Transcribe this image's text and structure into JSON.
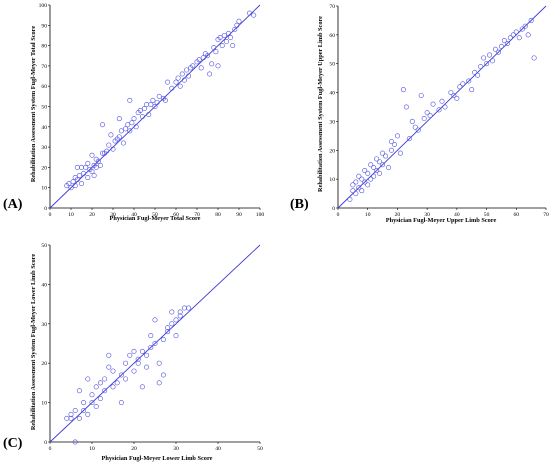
{
  "panel_labels": [
    "(A)",
    "(B)",
    "(C)"
  ],
  "colors": {
    "marker": "#5050e0",
    "fit_line": "#3a3ad8",
    "axis": "#000000"
  },
  "chart_data": [
    {
      "type": "scatter",
      "panel": "(A)",
      "xlabel": "Physician Fugl-Meyer Total Score",
      "ylabel": "Rehabilitation Assessment System Fugl-Meyer Total Score",
      "xlim": [
        0,
        100
      ],
      "ylim": [
        0,
        100
      ],
      "xticks": [
        0,
        10,
        20,
        30,
        40,
        50,
        60,
        70,
        80,
        90,
        100
      ],
      "yticks": [
        0,
        10,
        20,
        30,
        40,
        50,
        60,
        70,
        80,
        90,
        100
      ],
      "fit_line": {
        "x": [
          0,
          100
        ],
        "y": [
          0,
          100
        ]
      },
      "points": [
        [
          8,
          11
        ],
        [
          9,
          12
        ],
        [
          10,
          10
        ],
        [
          11,
          13
        ],
        [
          12,
          11
        ],
        [
          12,
          15
        ],
        [
          13,
          14
        ],
        [
          13,
          20
        ],
        [
          14,
          16
        ],
        [
          15,
          12
        ],
        [
          15,
          20
        ],
        [
          16,
          17
        ],
        [
          17,
          20
        ],
        [
          18,
          15
        ],
        [
          18,
          22
        ],
        [
          19,
          19
        ],
        [
          20,
          18
        ],
        [
          20,
          26
        ],
        [
          21,
          21
        ],
        [
          21,
          16
        ],
        [
          22,
          20
        ],
        [
          22,
          24
        ],
        [
          23,
          23
        ],
        [
          24,
          21
        ],
        [
          25,
          27
        ],
        [
          25,
          41
        ],
        [
          26,
          27
        ],
        [
          27,
          28
        ],
        [
          28,
          31
        ],
        [
          29,
          36
        ],
        [
          30,
          29
        ],
        [
          31,
          33
        ],
        [
          32,
          34
        ],
        [
          33,
          35
        ],
        [
          33,
          44
        ],
        [
          34,
          38
        ],
        [
          35,
          32
        ],
        [
          36,
          39
        ],
        [
          37,
          41
        ],
        [
          38,
          38
        ],
        [
          38,
          53
        ],
        [
          39,
          42
        ],
        [
          40,
          44
        ],
        [
          41,
          40
        ],
        [
          42,
          47
        ],
        [
          43,
          48
        ],
        [
          44,
          45
        ],
        [
          45,
          49
        ],
        [
          46,
          51
        ],
        [
          47,
          46
        ],
        [
          48,
          51
        ],
        [
          49,
          53
        ],
        [
          50,
          50
        ],
        [
          51,
          52
        ],
        [
          52,
          55
        ],
        [
          54,
          54
        ],
        [
          55,
          53
        ],
        [
          56,
          62
        ],
        [
          58,
          59
        ],
        [
          60,
          62
        ],
        [
          61,
          64
        ],
        [
          62,
          60
        ],
        [
          63,
          66
        ],
        [
          64,
          63
        ],
        [
          65,
          68
        ],
        [
          66,
          65
        ],
        [
          67,
          69
        ],
        [
          68,
          70
        ],
        [
          70,
          72
        ],
        [
          71,
          73
        ],
        [
          72,
          69
        ],
        [
          73,
          74
        ],
        [
          74,
          76
        ],
        [
          75,
          75
        ],
        [
          76,
          66
        ],
        [
          77,
          71
        ],
        [
          78,
          79
        ],
        [
          79,
          77
        ],
        [
          80,
          83
        ],
        [
          80,
          70
        ],
        [
          81,
          84
        ],
        [
          82,
          80
        ],
        [
          83,
          85
        ],
        [
          84,
          82
        ],
        [
          85,
          86
        ],
        [
          86,
          84
        ],
        [
          87,
          80
        ],
        [
          88,
          88
        ],
        [
          89,
          90
        ],
        [
          90,
          92
        ],
        [
          95,
          96
        ],
        [
          97,
          95
        ]
      ]
    },
    {
      "type": "scatter",
      "panel": "(B)",
      "xlabel": "Physician Fugl-Meyer Upper Limb Score",
      "ylabel": "Rehabilitation Assessment System Fugl-Meyer Upper Limb Score",
      "xlim": [
        0,
        70
      ],
      "ylim": [
        0,
        70
      ],
      "xticks": [
        0,
        10,
        20,
        30,
        40,
        50,
        60,
        70
      ],
      "yticks": [
        0,
        10,
        20,
        30,
        40,
        50,
        60,
        70
      ],
      "fit_line": {
        "x": [
          0,
          70
        ],
        "y": [
          0,
          70
        ]
      },
      "points": [
        [
          4,
          3
        ],
        [
          5,
          6
        ],
        [
          5,
          8
        ],
        [
          6,
          5
        ],
        [
          6,
          9
        ],
        [
          7,
          7
        ],
        [
          7,
          11
        ],
        [
          8,
          6
        ],
        [
          8,
          10
        ],
        [
          9,
          9
        ],
        [
          9,
          13
        ],
        [
          10,
          8
        ],
        [
          10,
          12
        ],
        [
          11,
          10
        ],
        [
          11,
          15
        ],
        [
          12,
          11
        ],
        [
          12,
          14
        ],
        [
          13,
          13
        ],
        [
          13,
          17
        ],
        [
          14,
          12
        ],
        [
          14,
          16
        ],
        [
          15,
          15
        ],
        [
          15,
          19
        ],
        [
          16,
          18
        ],
        [
          17,
          14
        ],
        [
          18,
          20
        ],
        [
          18,
          23
        ],
        [
          19,
          22
        ],
        [
          20,
          25
        ],
        [
          21,
          19
        ],
        [
          22,
          41
        ],
        [
          23,
          35
        ],
        [
          24,
          24
        ],
        [
          25,
          30
        ],
        [
          26,
          28
        ],
        [
          27,
          27
        ],
        [
          28,
          39
        ],
        [
          29,
          31
        ],
        [
          30,
          33
        ],
        [
          31,
          32
        ],
        [
          32,
          36
        ],
        [
          34,
          34
        ],
        [
          35,
          37
        ],
        [
          36,
          35
        ],
        [
          38,
          40
        ],
        [
          39,
          39
        ],
        [
          40,
          38
        ],
        [
          41,
          42
        ],
        [
          42,
          43
        ],
        [
          44,
          44
        ],
        [
          45,
          41
        ],
        [
          46,
          47
        ],
        [
          47,
          46
        ],
        [
          48,
          49
        ],
        [
          49,
          52
        ],
        [
          50,
          50
        ],
        [
          51,
          53
        ],
        [
          52,
          51
        ],
        [
          53,
          55
        ],
        [
          54,
          54
        ],
        [
          55,
          56
        ],
        [
          56,
          58
        ],
        [
          57,
          57
        ],
        [
          58,
          59
        ],
        [
          59,
          60
        ],
        [
          60,
          61
        ],
        [
          61,
          59
        ],
        [
          62,
          62
        ],
        [
          63,
          63
        ],
        [
          64,
          60
        ],
        [
          65,
          65
        ],
        [
          66,
          52
        ]
      ]
    },
    {
      "type": "scatter",
      "panel": "(C)",
      "xlabel": "Physician Fugl-Meyer Lower Limb Score",
      "ylabel": "Rehabilitation Assessment System Fugl-Meyer Lower Limb Score",
      "xlim": [
        0,
        50
      ],
      "ylim": [
        0,
        50
      ],
      "xticks": [
        0,
        10,
        20,
        30,
        40,
        50
      ],
      "yticks": [
        0,
        10,
        20,
        30,
        40,
        50
      ],
      "fit_line": {
        "x": [
          0,
          50
        ],
        "y": [
          0,
          50
        ]
      },
      "points": [
        [
          4,
          6
        ],
        [
          5,
          6
        ],
        [
          5,
          7
        ],
        [
          6,
          8
        ],
        [
          6,
          0
        ],
        [
          7,
          6
        ],
        [
          7,
          13
        ],
        [
          8,
          10
        ],
        [
          8,
          8
        ],
        [
          9,
          7
        ],
        [
          9,
          16
        ],
        [
          10,
          10
        ],
        [
          10,
          12
        ],
        [
          11,
          9
        ],
        [
          11,
          14
        ],
        [
          12,
          15
        ],
        [
          12,
          11
        ],
        [
          13,
          13
        ],
        [
          13,
          16
        ],
        [
          14,
          22
        ],
        [
          14,
          19
        ],
        [
          15,
          14
        ],
        [
          15,
          18
        ],
        [
          16,
          15
        ],
        [
          17,
          17
        ],
        [
          17,
          10
        ],
        [
          18,
          20
        ],
        [
          18,
          16
        ],
        [
          19,
          22
        ],
        [
          20,
          18
        ],
        [
          20,
          23
        ],
        [
          21,
          21
        ],
        [
          21,
          20
        ],
        [
          22,
          23
        ],
        [
          22,
          14
        ],
        [
          23,
          22
        ],
        [
          23,
          19
        ],
        [
          24,
          24
        ],
        [
          24,
          27
        ],
        [
          25,
          25
        ],
        [
          25,
          31
        ],
        [
          26,
          20
        ],
        [
          26,
          15
        ],
        [
          27,
          17
        ],
        [
          27,
          26
        ],
        [
          28,
          28
        ],
        [
          28,
          29
        ],
        [
          29,
          30
        ],
        [
          29,
          33
        ],
        [
          30,
          31
        ],
        [
          30,
          27
        ],
        [
          31,
          32
        ],
        [
          31,
          33
        ],
        [
          32,
          34
        ],
        [
          33,
          34
        ]
      ]
    }
  ]
}
